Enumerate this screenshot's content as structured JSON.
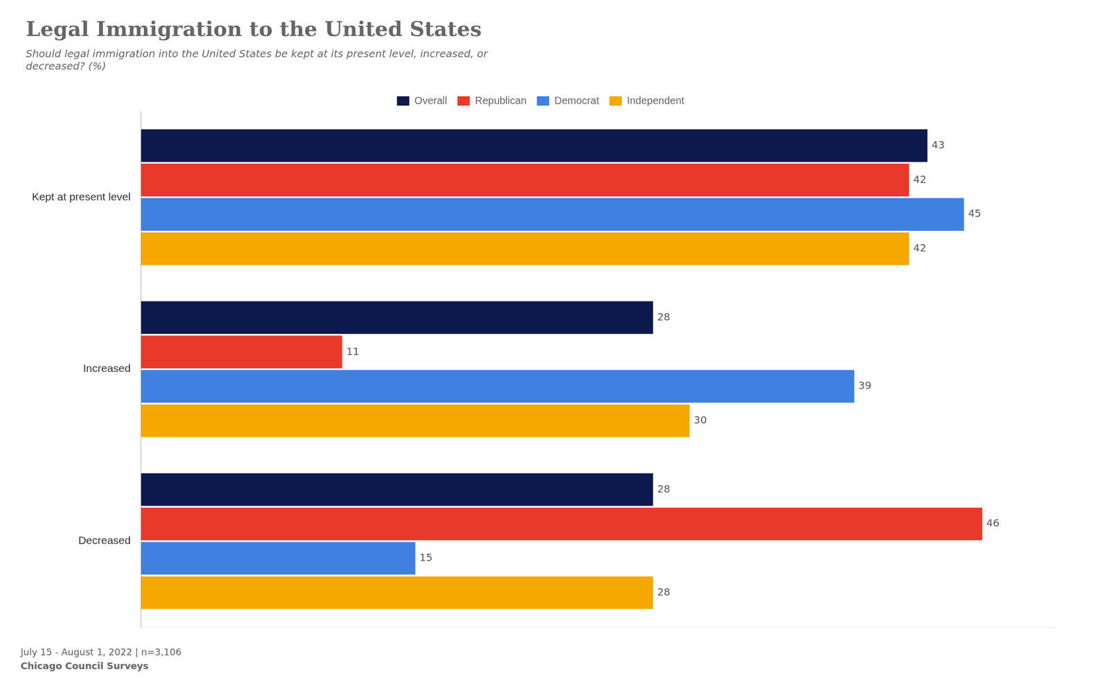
{
  "chart_data": {
    "type": "bar",
    "orientation": "horizontal",
    "title": "Legal Immigration to the United States",
    "subtitle": "Should legal immigration into the United States be kept at its present level, increased, or\ndecreased? (%)",
    "categories": [
      "Kept at present level",
      "Increased",
      "Decreased"
    ],
    "series": [
      {
        "name": "Overall",
        "color": "#0c1a4e",
        "values": [
          43,
          28,
          28
        ]
      },
      {
        "name": "Republican",
        "color": "#e8392a",
        "values": [
          42,
          11,
          46
        ]
      },
      {
        "name": "Democrat",
        "color": "#4080e0",
        "values": [
          45,
          39,
          15
        ]
      },
      {
        "name": "Independent",
        "color": "#f5a800",
        "values": [
          42,
          30,
          28
        ]
      }
    ],
    "xlim": [
      0,
      50
    ],
    "grid": false,
    "legend": "top",
    "data_labels": true,
    "tick_labels": "y",
    "annotations": [
      "July 15 - August 1, 2022 | n=3,106",
      "Chicago Council Surveys"
    ]
  }
}
